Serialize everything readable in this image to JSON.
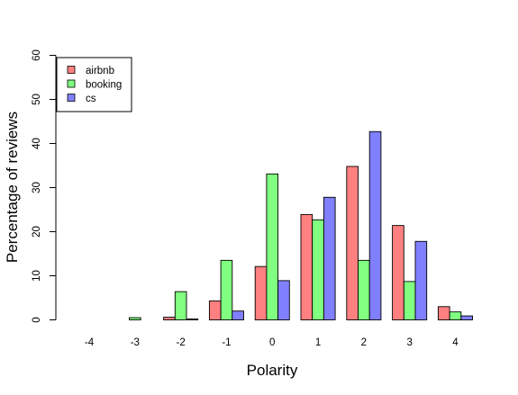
{
  "chart_data": {
    "type": "bar",
    "title": "",
    "xlabel": "Polarity",
    "ylabel": "Percentage of reviews",
    "categories": [
      "-4",
      "-3",
      "-2",
      "-1",
      "0",
      "1",
      "2",
      "3",
      "4"
    ],
    "ylim": [
      0,
      60
    ],
    "yticks": [
      "0",
      "10",
      "20",
      "30",
      "40",
      "50",
      "60"
    ],
    "grid": false,
    "legend_position": "top-left",
    "series": [
      {
        "name": "airbnb",
        "color": "#FF8080",
        "values": [
          0.0,
          0.0,
          0.6,
          4.3,
          12.1,
          23.9,
          34.8,
          21.4,
          3.0
        ]
      },
      {
        "name": "booking",
        "color": "#80FF80",
        "values": [
          0.0,
          0.5,
          6.4,
          13.5,
          33.1,
          22.7,
          13.5,
          8.7,
          1.8
        ]
      },
      {
        "name": "cs",
        "color": "#8080FF",
        "values": [
          0.0,
          0.0,
          0.2,
          2.0,
          8.9,
          27.8,
          42.7,
          17.8,
          0.9
        ]
      }
    ]
  }
}
